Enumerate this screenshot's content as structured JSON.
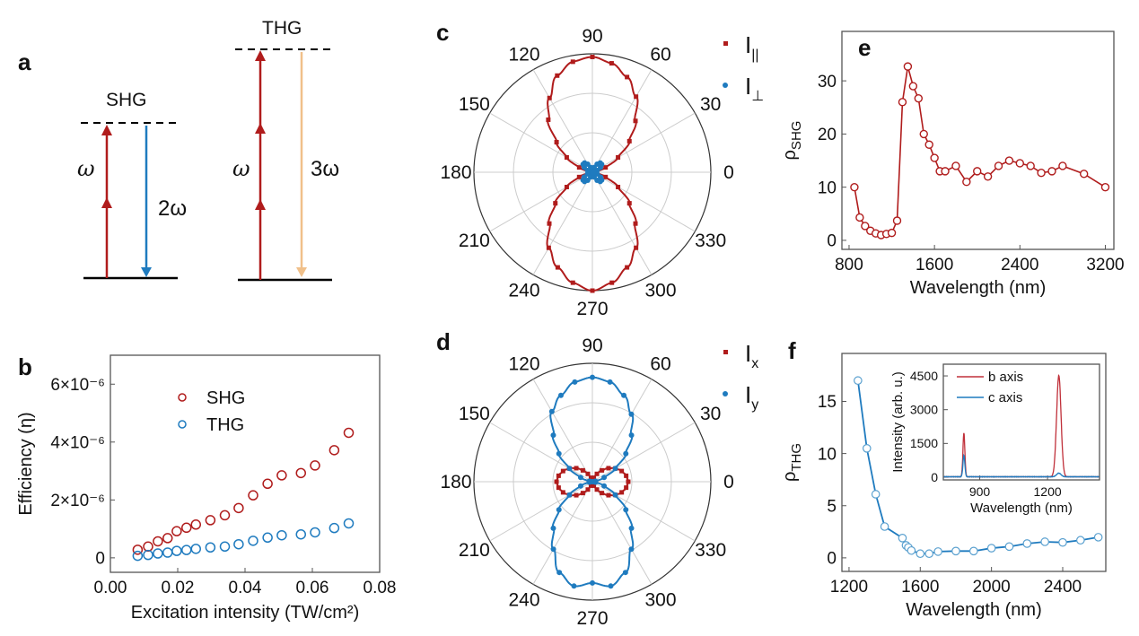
{
  "colors": {
    "red": "#b01c1c",
    "blue": "#1f7bbf",
    "orange": "#f0c08a",
    "grid": "#cccccc"
  },
  "panel_labels": [
    "a",
    "b",
    "c",
    "d",
    "e",
    "f"
  ],
  "diagram_a": {
    "shg": {
      "title": "SHG",
      "omega": "ω",
      "out": "2ω"
    },
    "thg": {
      "title": "THG",
      "omega": "ω",
      "out": "3ω"
    }
  },
  "chart_data": [
    {
      "id": "b",
      "type": "scatter",
      "xlabel": "Excitation intensity (TW/cm²)",
      "ylabel": "Efficiency (η)",
      "xlim": [
        0,
        0.08
      ],
      "ylim": [
        -5e-07,
        7e-06
      ],
      "xticks": [
        "0.00",
        "0.02",
        "0.04",
        "0.06",
        "0.08"
      ],
      "yticks": [
        {
          "v": 0,
          "label": "0"
        },
        {
          "v": 2e-06,
          "label": "2×10⁻⁶"
        },
        {
          "v": 4e-06,
          "label": "4×10⁻⁶"
        },
        {
          "v": 6e-06,
          "label": "6×10⁻⁶"
        }
      ],
      "legend": "top-left",
      "x": [
        0.0081,
        0.0112,
        0.0141,
        0.017,
        0.0197,
        0.0226,
        0.0254,
        0.0297,
        0.034,
        0.0381,
        0.0424,
        0.0467,
        0.0509,
        0.0566,
        0.0608,
        0.0665,
        0.0708
      ],
      "series": [
        {
          "name": "SHG",
          "color": "#b01c1c",
          "values": [
            2.8e-07,
            3.9e-07,
            5.7e-07,
            6.8e-07,
            9.2e-07,
            1.04e-06,
            1.15e-06,
            1.3e-06,
            1.47e-06,
            1.72e-06,
            2.16e-06,
            2.56e-06,
            2.85e-06,
            2.93e-06,
            3.19e-06,
            3.72e-06,
            4.32e-06
          ]
        },
        {
          "name": "THG",
          "color": "#1f7bbf",
          "values": [
            7e-08,
            1e-07,
            1.5e-07,
            1.8e-07,
            2.4e-07,
            2.7e-07,
            3.1e-07,
            3.6e-07,
            3.9e-07,
            4.7e-07,
            5.9e-07,
            7e-07,
            7.8e-07,
            8.1e-07,
            8.8e-07,
            1.03e-06,
            1.19e-06
          ]
        }
      ]
    },
    {
      "id": "c",
      "type": "polar",
      "angle_labels": [
        "0",
        "30",
        "60",
        "90",
        "120",
        "150",
        "180",
        "210",
        "240",
        "270",
        "300",
        "330"
      ],
      "theta": [
        0,
        10,
        20,
        30,
        40,
        50,
        60,
        70,
        80,
        90,
        100,
        110,
        120,
        130,
        140,
        150,
        160,
        170,
        180,
        190,
        200,
        210,
        220,
        230,
        240,
        250,
        260,
        270,
        280,
        290,
        300,
        310,
        320,
        330,
        340,
        350
      ],
      "series": [
        {
          "name": "I",
          "sub": "||",
          "color": "#b01c1c",
          "values": [
            0,
            0.02,
            0.09,
            0.19,
            0.31,
            0.43,
            0.56,
            0.65,
            0.71,
            0.74,
            0.72,
            0.66,
            0.55,
            0.44,
            0.3,
            0.19,
            0.09,
            0.02,
            0,
            0.02,
            0.09,
            0.19,
            0.31,
            0.43,
            0.56,
            0.65,
            0.72,
            0.76,
            0.72,
            0.65,
            0.56,
            0.43,
            0.31,
            0.19,
            0.09,
            0.02
          ]
        },
        {
          "name": "I",
          "sub": "⊥",
          "color": "#1f7bbf",
          "values": [
            0,
            0.009,
            0.033,
            0.06,
            0.078,
            0.078,
            0.06,
            0.033,
            0.009,
            0,
            0.009,
            0.033,
            0.06,
            0.078,
            0.078,
            0.06,
            0.033,
            0.009,
            0,
            0.009,
            0.033,
            0.06,
            0.078,
            0.078,
            0.06,
            0.033,
            0.009,
            0,
            0.009,
            0.033,
            0.06,
            0.078,
            0.078,
            0.06,
            0.033,
            0.009
          ]
        }
      ]
    },
    {
      "id": "d",
      "type": "polar",
      "angle_labels": [
        "0",
        "30",
        "60",
        "90",
        "120",
        "150",
        "180",
        "210",
        "240",
        "270",
        "300",
        "330"
      ],
      "theta": [
        0,
        10,
        20,
        30,
        40,
        50,
        60,
        70,
        80,
        90,
        100,
        110,
        120,
        130,
        140,
        150,
        160,
        170,
        180,
        190,
        200,
        210,
        220,
        230,
        240,
        250,
        260,
        270,
        280,
        290,
        300,
        310,
        320,
        330,
        340,
        350
      ],
      "series": [
        {
          "name": "I",
          "sub": "x",
          "color": "#b01c1c",
          "values": [
            0.23,
            0.22,
            0.2,
            0.17,
            0.135,
            0.095,
            0.058,
            0.027,
            0.007,
            0,
            0.007,
            0.027,
            0.058,
            0.095,
            0.135,
            0.17,
            0.2,
            0.22,
            0.23,
            0.22,
            0.2,
            0.17,
            0.135,
            0.095,
            0.058,
            0.027,
            0.007,
            0,
            0.007,
            0.027,
            0.058,
            0.095,
            0.135,
            0.17,
            0.2,
            0.22
          ]
        },
        {
          "name": "I",
          "sub": "y",
          "color": "#1f7bbf",
          "values": [
            0,
            0.02,
            0.08,
            0.17,
            0.28,
            0.39,
            0.5,
            0.59,
            0.65,
            0.67,
            0.65,
            0.59,
            0.52,
            0.39,
            0.28,
            0.17,
            0.08,
            0.02,
            0,
            0.02,
            0.08,
            0.17,
            0.28,
            0.39,
            0.5,
            0.62,
            0.68,
            0.65,
            0.68,
            0.62,
            0.5,
            0.39,
            0.28,
            0.17,
            0.08,
            0.02
          ]
        }
      ]
    },
    {
      "id": "e",
      "type": "line",
      "xlabel": "Wavelength (nm)",
      "ylabel": "ρ",
      "ylabel_sub": "SHG",
      "xlim": [
        733,
        3280
      ],
      "ylim": [
        -1.7,
        39.3
      ],
      "xticks": [
        800,
        1600,
        2400,
        3200
      ],
      "yticks": [
        0,
        10,
        20,
        30
      ],
      "color": "#b01c1c",
      "x": [
        850,
        900,
        950,
        1000,
        1050,
        1100,
        1150,
        1200,
        1250,
        1300,
        1350,
        1400,
        1450,
        1500,
        1550,
        1600,
        1650,
        1700,
        1800,
        1900,
        2000,
        2100,
        2200,
        2300,
        2400,
        2500,
        2600,
        2700,
        2800,
        3000,
        3200
      ],
      "y": [
        10,
        4.3,
        2.7,
        1.8,
        1.3,
        1.0,
        1.2,
        1.4,
        3.7,
        26,
        32.7,
        29,
        26.7,
        20,
        18,
        15.5,
        13,
        13,
        14,
        11,
        13,
        12,
        14,
        15,
        14.5,
        14,
        12.7,
        13,
        14,
        12.5,
        10
      ]
    },
    {
      "id": "f",
      "type": "line",
      "xlabel": "Wavelength (nm)",
      "ylabel": "ρ",
      "ylabel_sub": "THG",
      "xlim": [
        1160,
        2642
      ],
      "ylim": [
        -1.3,
        19.6
      ],
      "xticks": [
        1200,
        1600,
        2000,
        2400
      ],
      "yticks": [
        0,
        5,
        10,
        15
      ],
      "color": "#1f7bbf",
      "x": [
        1250,
        1300,
        1350,
        1400,
        1500,
        1520,
        1533,
        1550,
        1600,
        1650,
        1700,
        1800,
        1900,
        2000,
        2100,
        2200,
        2300,
        2400,
        2500,
        2600
      ],
      "y": [
        17.0,
        10.5,
        6.1,
        3.0,
        1.9,
        1.2,
        1.0,
        0.7,
        0.4,
        0.4,
        0.6,
        0.65,
        0.65,
        0.93,
        1.08,
        1.37,
        1.54,
        1.48,
        1.69,
        1.98
      ],
      "inset": {
        "type": "line",
        "xlabel": "Wavelength (nm)",
        "ylabel": "Intensity (arb. u.)",
        "xlim": [
          739,
          1430
        ],
        "ylim": [
          -120,
          5020
        ],
        "xticks": [
          900,
          1200
        ],
        "yticks": [
          0,
          1500,
          3000,
          4500
        ],
        "legend": "top-left",
        "series": [
          {
            "name": "b axis",
            "color": "#c0303a",
            "peaks": [
              {
                "x": 830,
                "y": 1950,
                "width": 6
              },
              {
                "x": 1250,
                "y": 4500,
                "width": 14
              }
            ]
          },
          {
            "name": "c axis",
            "color": "#1f7bbf",
            "peaks": [
              {
                "x": 830,
                "y": 950,
                "width": 6
              },
              {
                "x": 1250,
                "y": 160,
                "width": 14
              }
            ]
          }
        ]
      }
    }
  ]
}
